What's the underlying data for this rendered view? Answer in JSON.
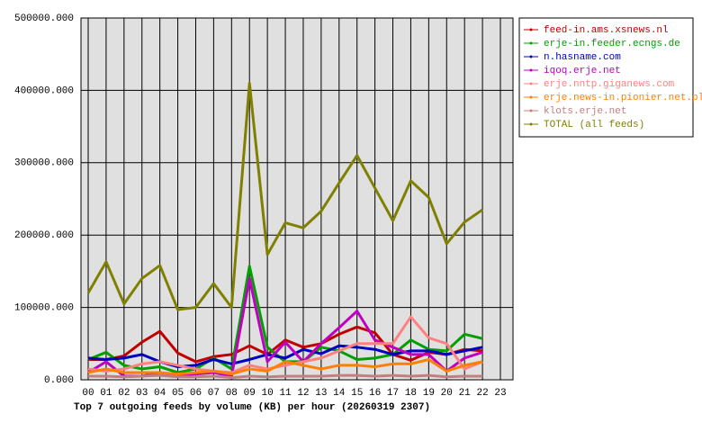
{
  "chart_data": {
    "type": "line",
    "title": "Top 7 outgoing feeds by volume (KB) per hour (20260319 2307)",
    "categories": [
      "00",
      "01",
      "02",
      "03",
      "04",
      "05",
      "06",
      "07",
      "08",
      "09",
      "10",
      "11",
      "12",
      "13",
      "14",
      "15",
      "16",
      "17",
      "18",
      "19",
      "20",
      "21",
      "22",
      "23"
    ],
    "ylim": [
      0,
      500000
    ],
    "yticks": [
      {
        "value": 0,
        "label": "0.000"
      },
      {
        "value": 100000,
        "label": "100000.000"
      },
      {
        "value": 200000,
        "label": "200000.000"
      },
      {
        "value": 300000,
        "label": "300000.000"
      },
      {
        "value": 400000,
        "label": "400000.000"
      },
      {
        "value": 500000,
        "label": "500000.000"
      }
    ],
    "grid": true,
    "legend": "outside-right",
    "series": [
      {
        "name": "feed-in.ams.xsnews.nl",
        "color": "#c00000",
        "values": [
          28000,
          28000,
          33000,
          52000,
          67000,
          37000,
          25000,
          32000,
          35000,
          47000,
          35000,
          55000,
          45000,
          50000,
          63000,
          73000,
          65000,
          35000,
          27000,
          38000,
          35000,
          42000,
          40000,
          null
        ]
      },
      {
        "name": "erje-in.feeder.ecngs.de",
        "color": "#00a000",
        "values": [
          28000,
          38000,
          20000,
          15000,
          18000,
          10000,
          15000,
          30000,
          15000,
          157000,
          45000,
          25000,
          25000,
          45000,
          40000,
          28000,
          30000,
          35000,
          55000,
          42000,
          40000,
          63000,
          57000,
          null
        ]
      },
      {
        "name": "n.hasname.com",
        "color": "#0000c0",
        "values": [
          30000,
          28000,
          30000,
          35000,
          25000,
          18000,
          20000,
          28000,
          22000,
          28000,
          35000,
          30000,
          42000,
          36000,
          47000,
          45000,
          42000,
          35000,
          40000,
          40000,
          35000,
          40000,
          45000,
          null
        ]
      },
      {
        "name": "iqoq.erje.net",
        "color": "#c000c0",
        "values": [
          10000,
          25000,
          5000,
          5000,
          10000,
          5000,
          8000,
          10000,
          5000,
          140000,
          25000,
          52000,
          25000,
          50000,
          72000,
          95000,
          55000,
          45000,
          35000,
          35000,
          12000,
          30000,
          38000,
          null
        ]
      },
      {
        "name": "erje.nntp.giganews.com",
        "color": "#ff8080",
        "values": [
          15000,
          12000,
          15000,
          22000,
          25000,
          20000,
          15000,
          12000,
          10000,
          20000,
          15000,
          20000,
          25000,
          30000,
          40000,
          50000,
          50000,
          50000,
          87000,
          58000,
          50000,
          15000,
          25000,
          null
        ]
      },
      {
        "name": "erje.news-in.pionier.net.pl",
        "color": "#ff8000",
        "values": [
          10000,
          15000,
          10000,
          10000,
          10000,
          8000,
          10000,
          12000,
          8000,
          15000,
          12000,
          25000,
          20000,
          15000,
          20000,
          20000,
          18000,
          22000,
          22000,
          28000,
          12000,
          20000,
          25000,
          null
        ]
      },
      {
        "name": "klots.erje.net",
        "color": "#c08080",
        "values": [
          5000,
          5000,
          4000,
          5000,
          6000,
          4000,
          4000,
          5000,
          3000,
          5000,
          4000,
          5000,
          5000,
          5000,
          6000,
          6000,
          5000,
          6000,
          5000,
          6000,
          4000,
          5000,
          5000,
          null
        ]
      },
      {
        "name": "TOTAL (all feeds)",
        "color": "#808000",
        "values": [
          120000,
          163000,
          105000,
          140000,
          158000,
          97000,
          100000,
          133000,
          100000,
          410000,
          173000,
          217000,
          210000,
          233000,
          272000,
          310000,
          265000,
          220000,
          275000,
          252000,
          188000,
          218000,
          235000,
          null
        ]
      }
    ]
  }
}
